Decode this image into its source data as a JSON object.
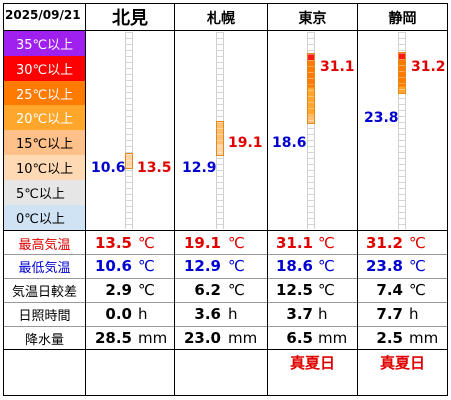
{
  "date": "2025/09/21",
  "cities": [
    {
      "name": "北見",
      "max": "13.5",
      "min": "10.6",
      "range": "2.9",
      "sunshine": "0.0",
      "precip": "28.5",
      "badge": ""
    },
    {
      "name": "札幌",
      "max": "19.1",
      "min": "12.9",
      "range": "6.2",
      "sunshine": "3.6",
      "precip": "23.0",
      "badge": ""
    },
    {
      "name": "東京",
      "max": "31.1",
      "min": "18.6",
      "range": "12.5",
      "sunshine": "3.7",
      "precip": "6.5",
      "badge": "真夏日"
    },
    {
      "name": "静岡",
      "max": "31.2",
      "min": "23.8",
      "range": "7.4",
      "sunshine": "7.7",
      "precip": "2.5",
      "badge": "真夏日"
    }
  ],
  "legend": [
    {
      "label": "35℃以上",
      "color": "#a020f0",
      "text_color": "#ffffff"
    },
    {
      "label": "30℃以上",
      "color": "#ff0000",
      "text_color": "#ffffff"
    },
    {
      "label": "25℃以上",
      "color": "#ff7a00",
      "text_color": "#ffffff"
    },
    {
      "label": "20℃以上",
      "color": "#ffa62b",
      "text_color": "#ffffff"
    },
    {
      "label": "15℃以上",
      "color": "#ffc08a",
      "text_color": "#000000"
    },
    {
      "label": "10℃以上",
      "color": "#ffd9b3",
      "text_color": "#000000"
    },
    {
      "label": "5℃以上",
      "color": "#e6e6e6",
      "text_color": "#000000"
    },
    {
      "label": "0℃以上",
      "color": "#cfe3f5",
      "text_color": "#000000"
    }
  ],
  "rows": {
    "max_label": "最高気温",
    "min_label": "最低気温",
    "range_label": "気温日較差",
    "sunshine_label": "日照時間",
    "precip_label": "降水量"
  },
  "units": {
    "temp": "℃",
    "sunshine": "h",
    "precip": "mm"
  },
  "colors": {
    "max": "#e00000",
    "min": "#0000d0",
    "badge": "#e00000"
  }
}
